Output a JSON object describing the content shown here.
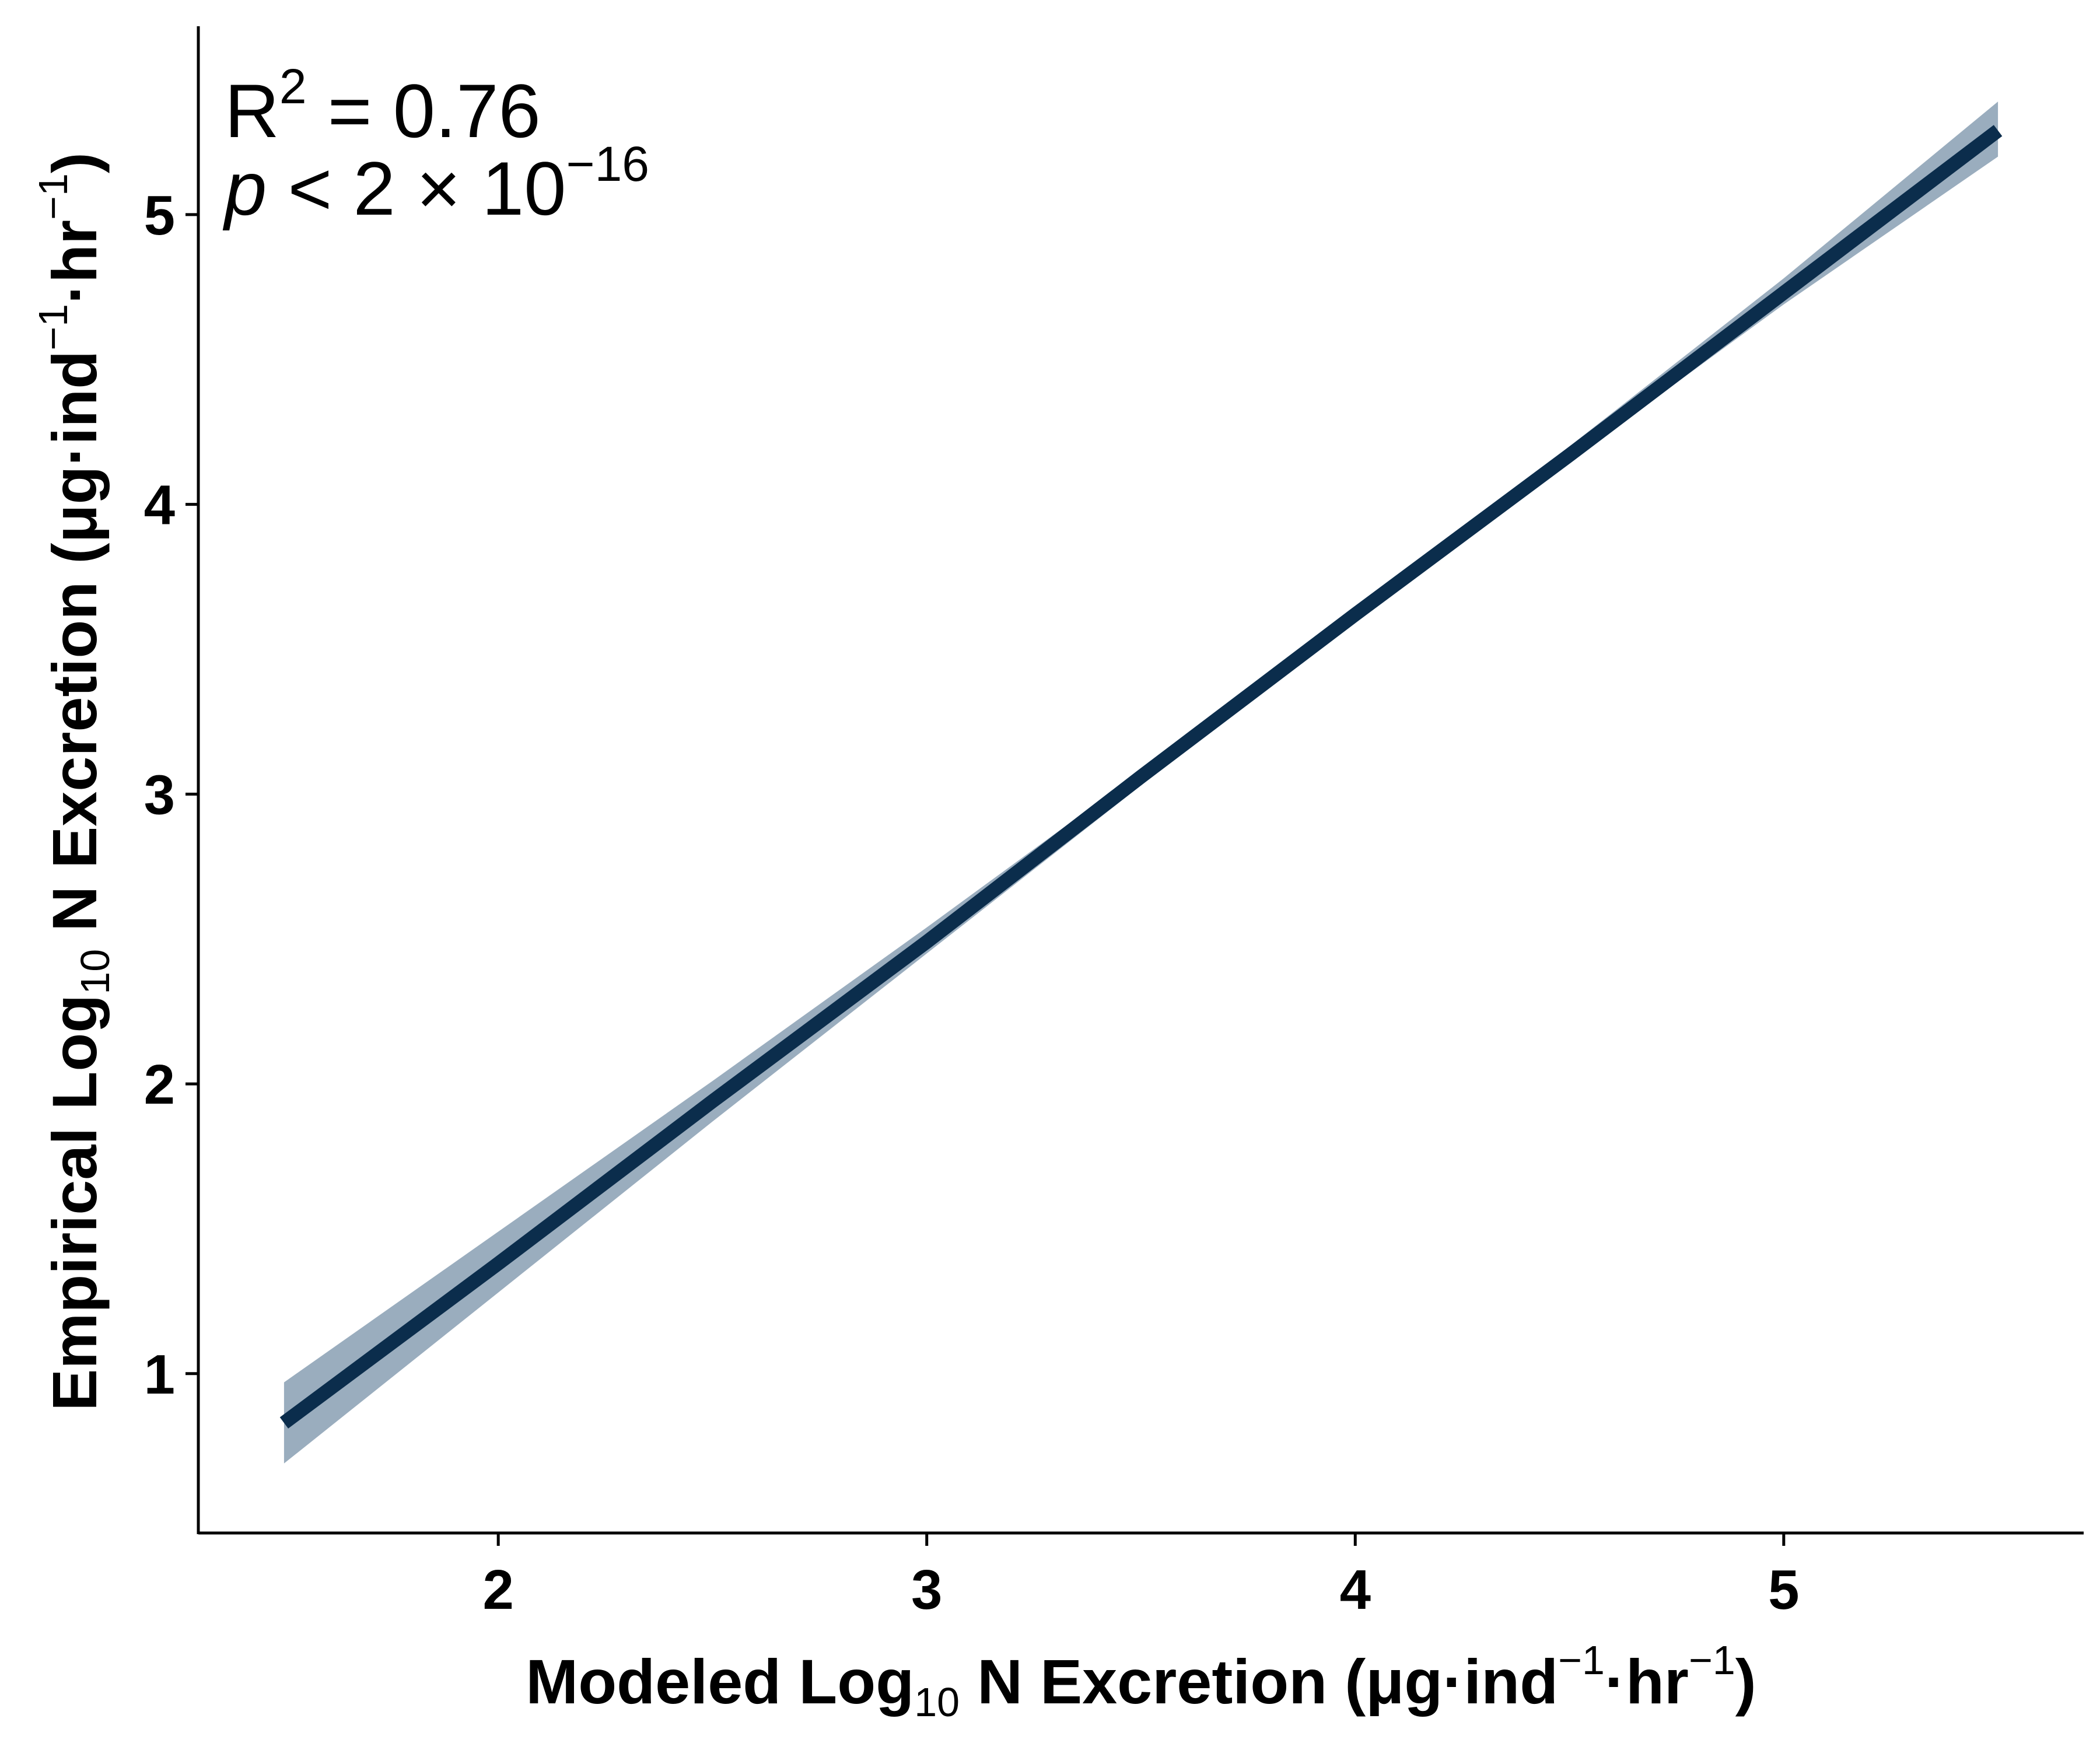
{
  "chart_data": {
    "type": "line",
    "x_axis": {
      "label_main": "Modeled Log",
      "label_sub": "10",
      "label_rest": " N Excretion (μg·ind",
      "label_sup1": "−1",
      "label_mid": "·hr",
      "label_sup2": "−1",
      "label_close": ")",
      "ticks": [
        2,
        3,
        4,
        5
      ],
      "range": [
        1.3,
        5.7
      ]
    },
    "y_axis": {
      "label_main": "Empirical Log",
      "label_sub": "10",
      "label_rest": " N Excretion (μg·ind",
      "label_sup1": "−1",
      "label_mid": "·hr",
      "label_sup2": "−1",
      "label_close": ")",
      "ticks": [
        1,
        2,
        3,
        4,
        5
      ],
      "range": [
        0.45,
        5.65
      ]
    },
    "series": [
      {
        "x": [
          1.5,
          2.0,
          2.5,
          3.0,
          3.5,
          4.0,
          4.5,
          5.0,
          5.5
        ],
        "y": [
          0.83,
          1.38,
          1.94,
          2.49,
          3.06,
          3.62,
          4.17,
          4.73,
          5.29
        ],
        "lower": [
          0.69,
          1.28,
          1.87,
          2.45,
          3.03,
          3.6,
          4.15,
          4.69,
          5.2
        ],
        "upper": [
          0.97,
          1.49,
          2.01,
          2.54,
          3.08,
          3.64,
          4.2,
          4.78,
          5.39
        ]
      }
    ],
    "annotation": {
      "r2_prefix": "R",
      "r2_sup": "2",
      "r2_value": " = 0.76",
      "p_symbol": "p",
      "p_text": " < 2 × 10",
      "p_sup": "−16"
    },
    "grid": false,
    "colors": {
      "line": "#0b2d4c",
      "ribbon": "#9aadbe",
      "axis": "#000000"
    }
  }
}
